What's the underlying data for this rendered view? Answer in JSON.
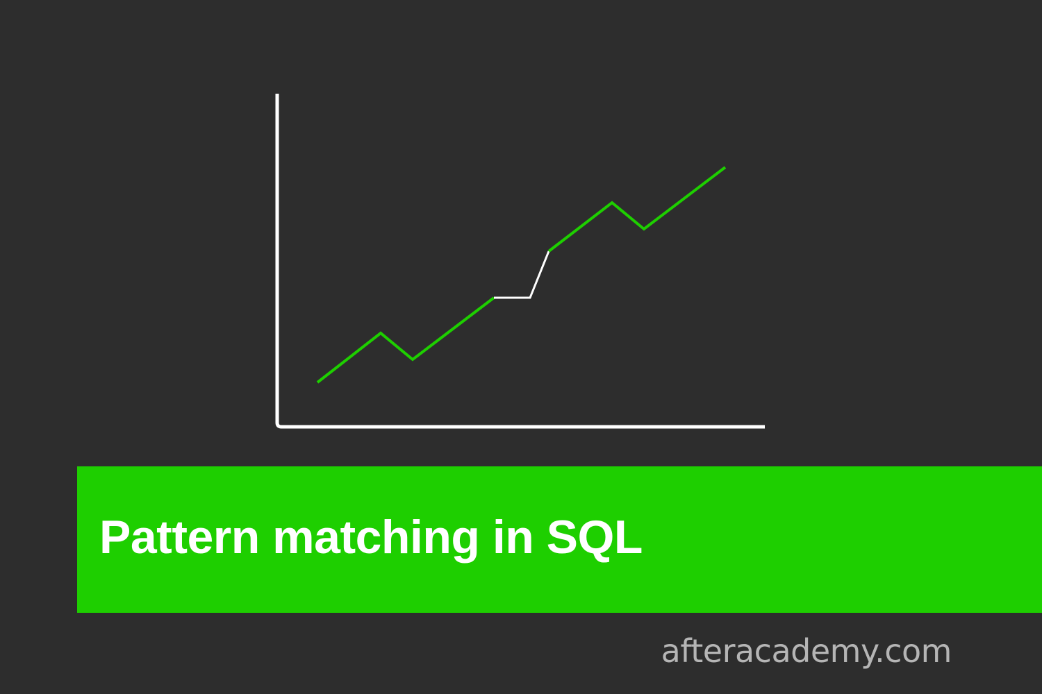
{
  "banner": {
    "title": "Pattern matching in SQL"
  },
  "footer": {
    "site": "afteracademy.com"
  },
  "illustration": {
    "icon": "line-graph-icon",
    "colors": {
      "background": "#2d2d2d",
      "axis": "#ffffff",
      "trend": "#1ecf00",
      "highlight": "#ffffff"
    }
  },
  "colors": {
    "background": "#2d2d2d",
    "banner": "#1ecf00",
    "title_text": "#ffffff",
    "site_text": "#b5b5b5"
  }
}
